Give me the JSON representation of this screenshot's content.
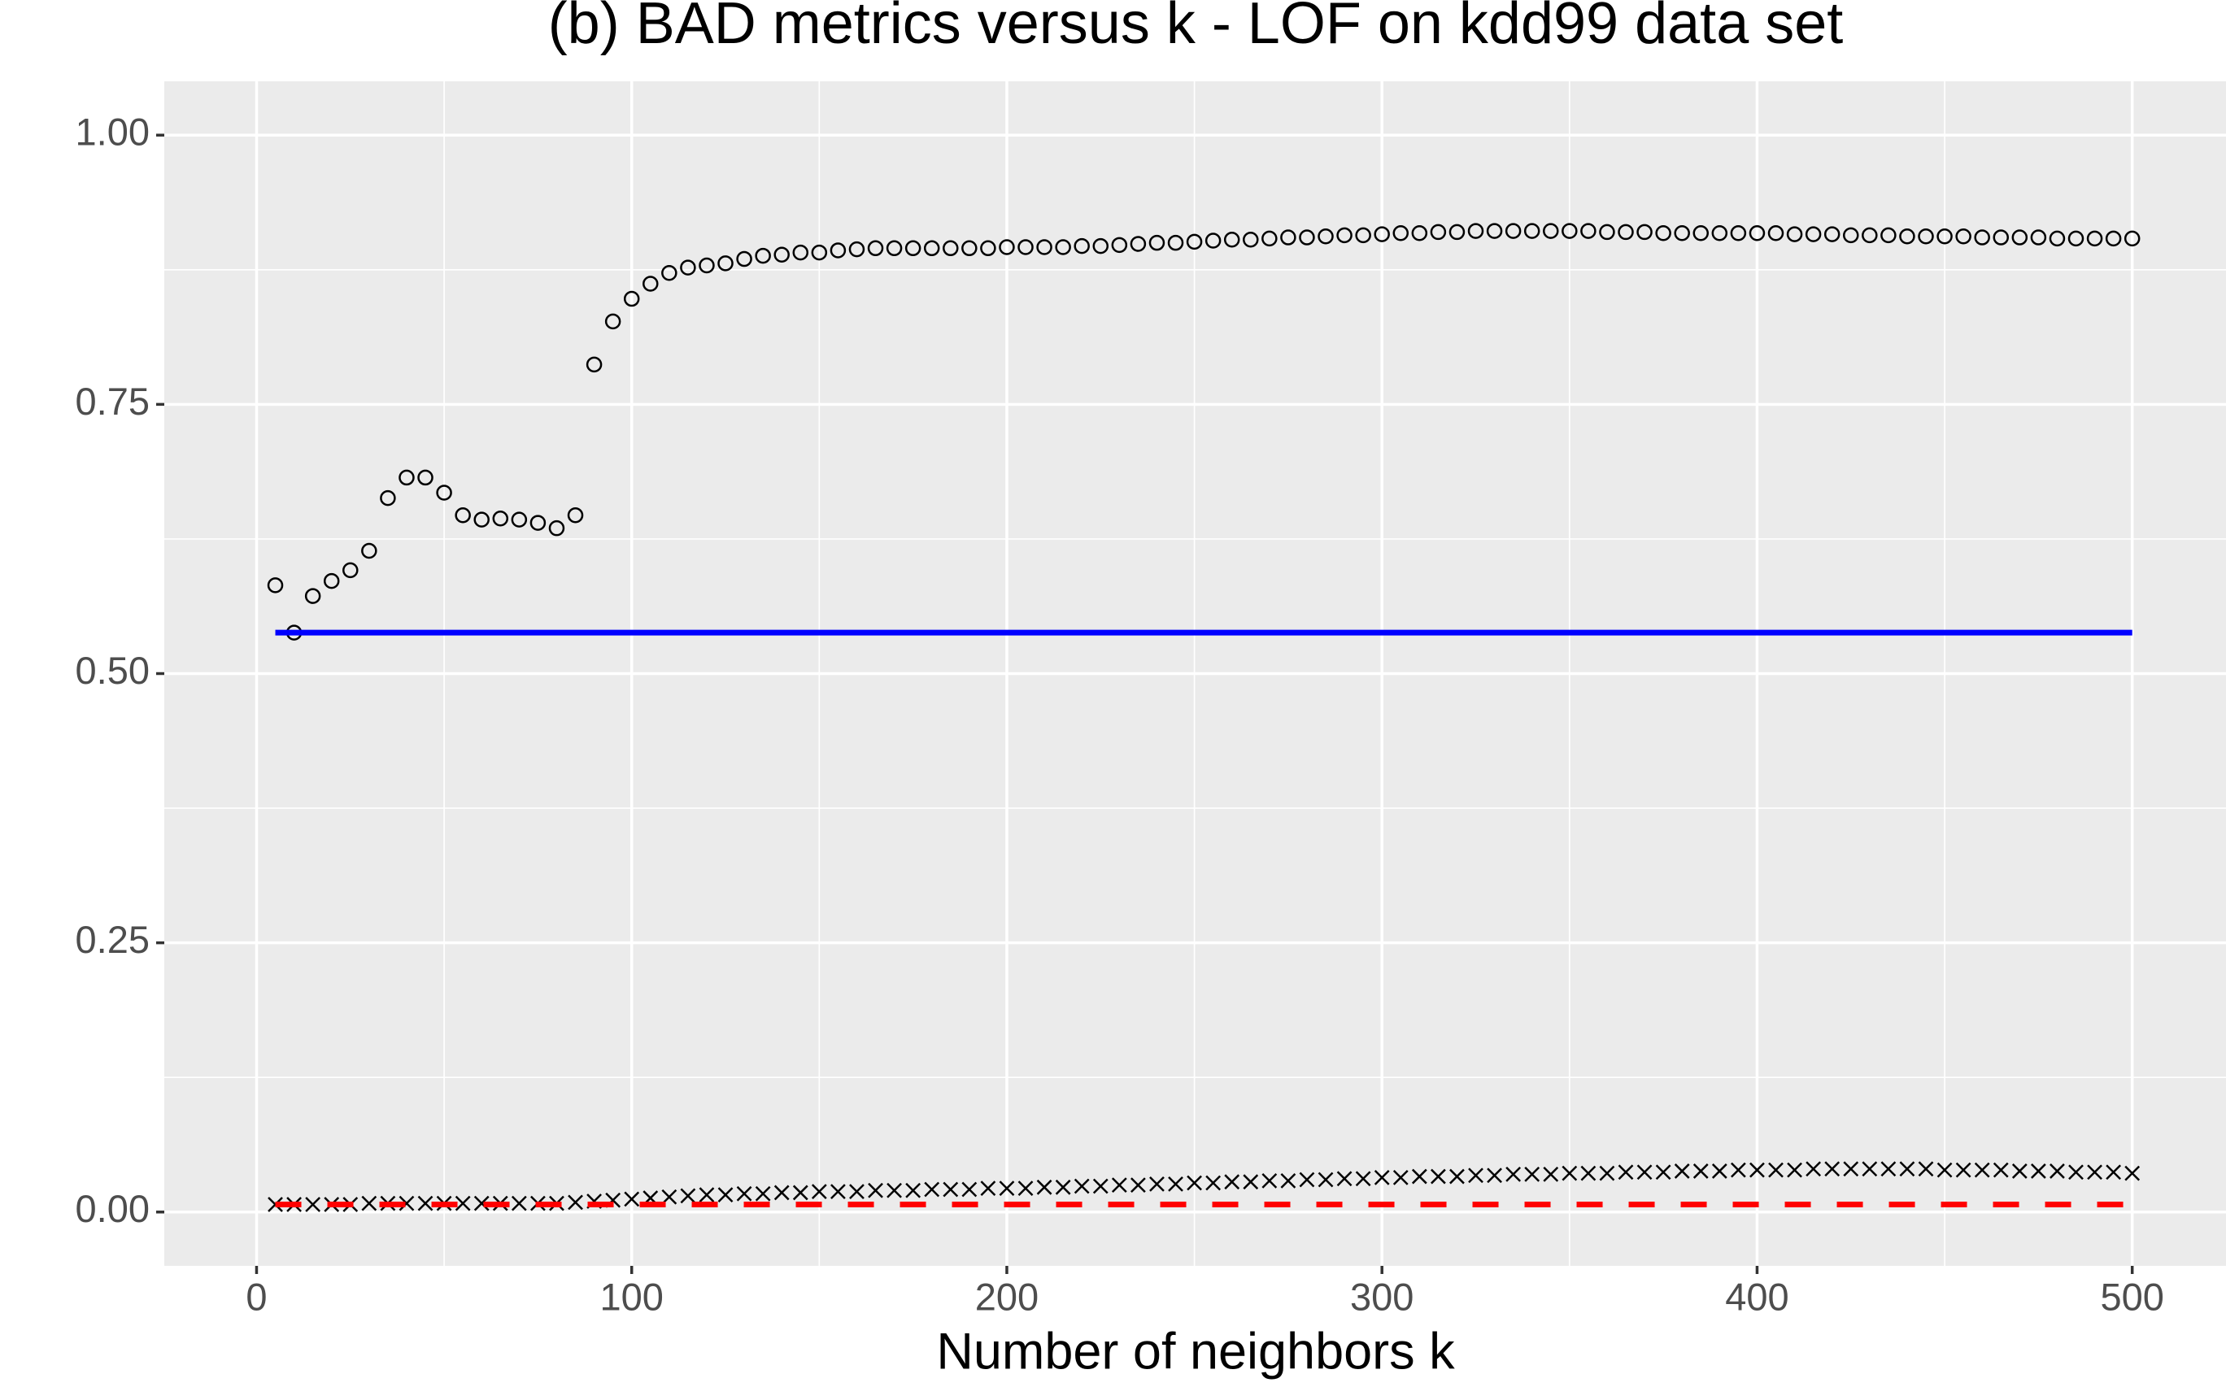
{
  "chart_data": {
    "type": "scatter",
    "title": "(b) BAD metrics versus k - LOF on kdd99 data set",
    "x_label": "Number of neighbors k",
    "xlim": [
      -24.6,
      525
    ],
    "ylim": [
      -0.05,
      1.05
    ],
    "xticks": [
      0,
      100,
      200,
      300,
      400,
      500
    ],
    "yticks": [
      {
        "value": 0,
        "label": "0.00"
      },
      {
        "value": 0.25,
        "label": "0.25"
      },
      {
        "value": 0.5,
        "label": "0.50"
      },
      {
        "value": 0.75,
        "label": "0.75"
      },
      {
        "value": 1,
        "label": "1.00"
      }
    ],
    "minor_xticks": [
      50,
      150,
      250,
      350,
      450
    ],
    "minor_yticks": [
      0.125,
      0.375,
      0.625,
      0.875
    ],
    "grid": true,
    "x": [
      5,
      10,
      15,
      20,
      25,
      30,
      35,
      40,
      45,
      50,
      55,
      60,
      65,
      70,
      75,
      80,
      85,
      90,
      95,
      100,
      105,
      110,
      115,
      120,
      125,
      130,
      135,
      140,
      145,
      150,
      155,
      160,
      165,
      170,
      175,
      180,
      185,
      190,
      195,
      200,
      205,
      210,
      215,
      220,
      225,
      230,
      235,
      240,
      245,
      250,
      255,
      260,
      265,
      270,
      275,
      280,
      285,
      290,
      295,
      300,
      305,
      310,
      315,
      320,
      325,
      330,
      335,
      340,
      345,
      350,
      355,
      360,
      365,
      370,
      375,
      380,
      385,
      390,
      395,
      400,
      405,
      410,
      415,
      420,
      425,
      430,
      435,
      440,
      445,
      450,
      455,
      460,
      465,
      470,
      475,
      480,
      485,
      490,
      495,
      500
    ],
    "series": [
      {
        "shape": "circle",
        "color": "#000000",
        "values": [
          0.582,
          0.538,
          0.572,
          0.586,
          0.596,
          0.614,
          0.663,
          0.682,
          0.682,
          0.668,
          0.647,
          0.643,
          0.644,
          0.643,
          0.64,
          0.635,
          0.647,
          0.787,
          0.827,
          0.848,
          0.862,
          0.872,
          0.877,
          0.879,
          0.881,
          0.885,
          0.888,
          0.889,
          0.891,
          0.891,
          0.893,
          0.894,
          0.895,
          0.895,
          0.895,
          0.895,
          0.895,
          0.895,
          0.895,
          0.896,
          0.896,
          0.896,
          0.896,
          0.897,
          0.897,
          0.898,
          0.899,
          0.9,
          0.9,
          0.901,
          0.902,
          0.903,
          0.903,
          0.904,
          0.905,
          0.905,
          0.906,
          0.907,
          0.907,
          0.908,
          0.909,
          0.909,
          0.91,
          0.91,
          0.911,
          0.911,
          0.911,
          0.911,
          0.911,
          0.911,
          0.911,
          0.91,
          0.91,
          0.91,
          0.909,
          0.909,
          0.909,
          0.909,
          0.909,
          0.909,
          0.909,
          0.908,
          0.908,
          0.908,
          0.907,
          0.907,
          0.907,
          0.906,
          0.906,
          0.906,
          0.906,
          0.905,
          0.905,
          0.905,
          0.905,
          0.904,
          0.904,
          0.904,
          0.904,
          0.904
        ]
      },
      {
        "shape": "cross",
        "color": "#000000",
        "values": [
          0.007,
          0.007,
          0.007,
          0.007,
          0.007,
          0.008,
          0.008,
          0.008,
          0.008,
          0.008,
          0.008,
          0.008,
          0.008,
          0.008,
          0.008,
          0.008,
          0.009,
          0.01,
          0.011,
          0.012,
          0.013,
          0.014,
          0.015,
          0.016,
          0.016,
          0.017,
          0.017,
          0.018,
          0.018,
          0.019,
          0.019,
          0.019,
          0.02,
          0.02,
          0.02,
          0.021,
          0.021,
          0.021,
          0.022,
          0.022,
          0.022,
          0.023,
          0.023,
          0.024,
          0.024,
          0.025,
          0.025,
          0.026,
          0.026,
          0.027,
          0.027,
          0.028,
          0.028,
          0.029,
          0.029,
          0.03,
          0.03,
          0.031,
          0.031,
          0.032,
          0.032,
          0.033,
          0.033,
          0.033,
          0.034,
          0.034,
          0.035,
          0.035,
          0.035,
          0.036,
          0.036,
          0.036,
          0.037,
          0.037,
          0.037,
          0.038,
          0.038,
          0.038,
          0.039,
          0.039,
          0.039,
          0.039,
          0.04,
          0.04,
          0.04,
          0.04,
          0.04,
          0.04,
          0.04,
          0.039,
          0.039,
          0.039,
          0.039,
          0.038,
          0.038,
          0.038,
          0.037,
          0.037,
          0.037,
          0.036
        ]
      },
      {
        "shape": "line",
        "color": "#0000ff",
        "x": [
          5,
          500
        ],
        "values": [
          0.538,
          0.538
        ]
      },
      {
        "shape": "dashed",
        "color": "#ff0000",
        "x": [
          5,
          500
        ],
        "values": [
          0.007,
          0.007
        ]
      }
    ]
  }
}
